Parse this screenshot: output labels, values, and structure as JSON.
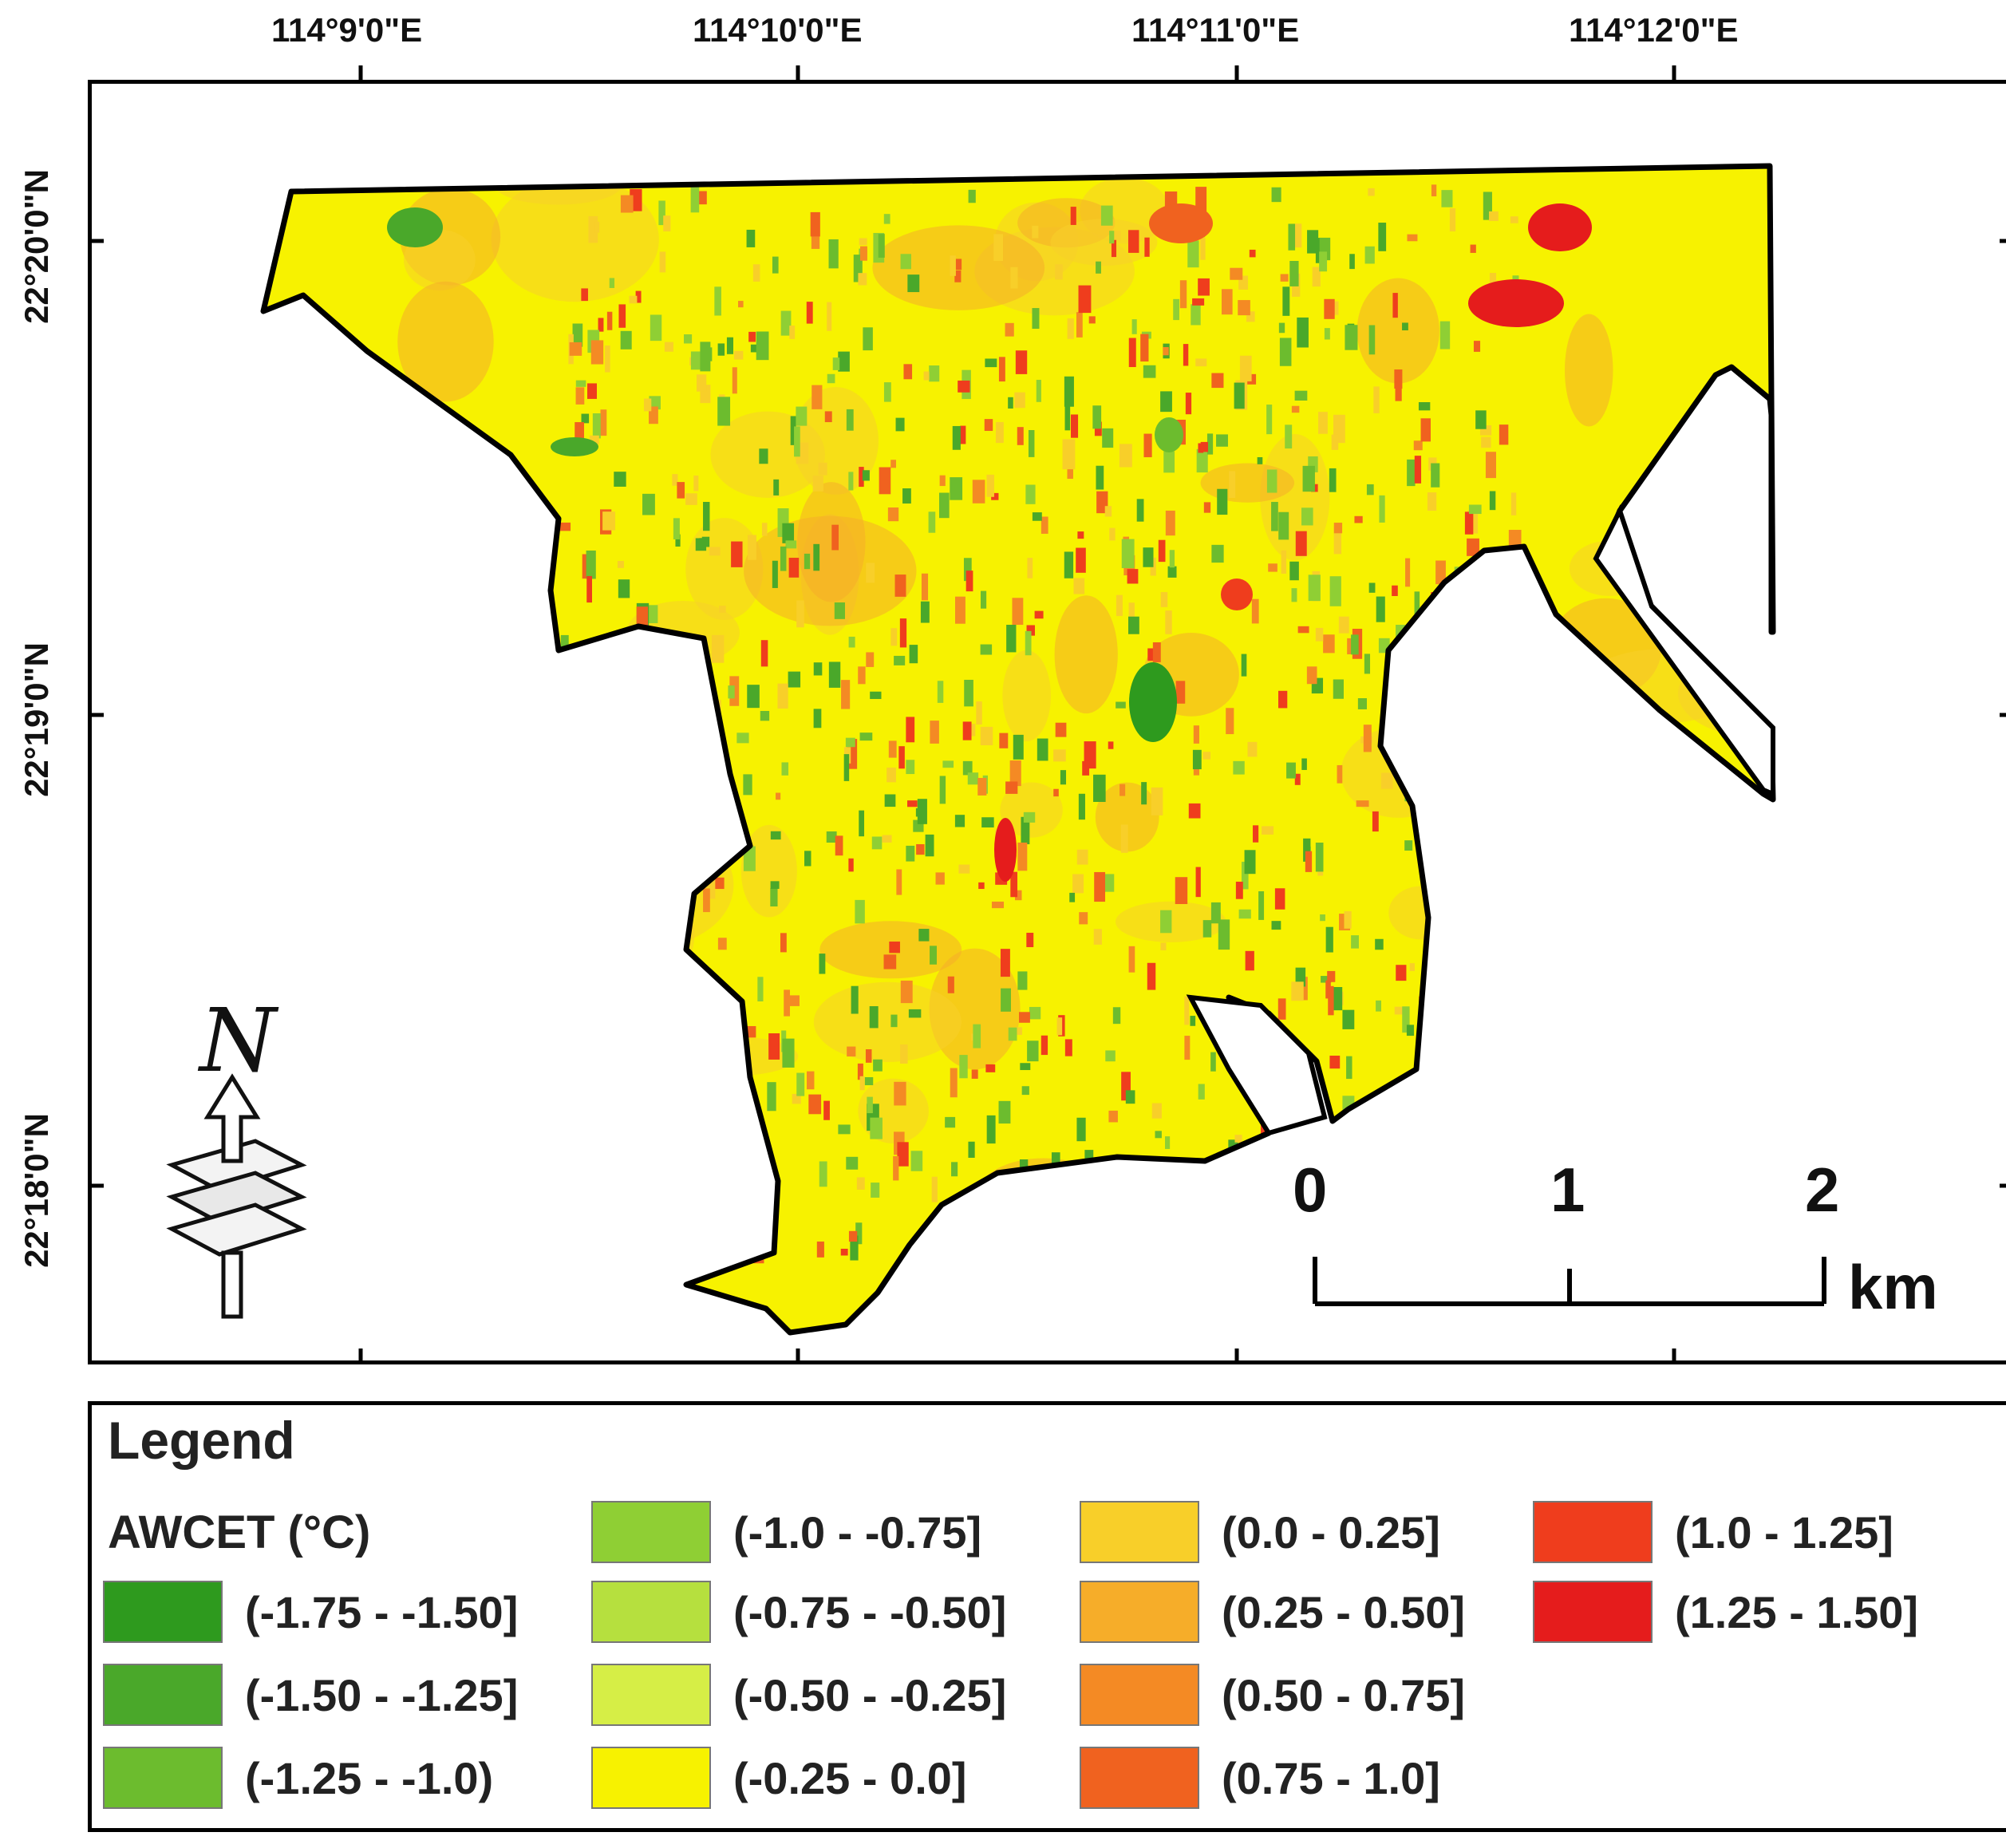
{
  "map": {
    "lon_labels": [
      "114°9'0\"E",
      "114°10'0\"E",
      "114°11'0\"E",
      "114°12'0\"E"
    ],
    "lat_labels": [
      "22°20'0\"N",
      "22°19'0\"N",
      "22°18'0\"N"
    ],
    "north_label": "N",
    "scale": {
      "ticks": [
        "0",
        "1",
        "2"
      ],
      "unit": "km"
    },
    "base_color": "#f7f200",
    "mask_color": "#ffffff"
  },
  "legend": {
    "title": "Legend",
    "subtitle": "AWCET (°C)",
    "items": [
      {
        "label": "(-1.75 - -1.50]",
        "color": "#2e9a1e"
      },
      {
        "label": "(-1.50 - -1.25]",
        "color": "#4aa82a"
      },
      {
        "label": "(-1.25 - -1.0)",
        "color": "#6cbc2e"
      },
      {
        "label": "(-1.0 - -0.75]",
        "color": "#8fcf34"
      },
      {
        "label": "(-0.75 - -0.50]",
        "color": "#b6e03e"
      },
      {
        "label": "(-0.50 - -0.25]",
        "color": "#d6ee46"
      },
      {
        "label": "(-0.25 - 0.0]",
        "color": "#f7f200"
      },
      {
        "label": "(0.0 - 0.25]",
        "color": "#f8cf29"
      },
      {
        "label": "(0.25 - 0.50]",
        "color": "#f6ad29"
      },
      {
        "label": "(0.50 - 0.75]",
        "color": "#f48a24"
      },
      {
        "label": "(0.75 - 1.0]",
        "color": "#f0621f"
      },
      {
        "label": "(1.0 - 1.25]",
        "color": "#ef3d1d"
      },
      {
        "label": "(1.25 - 1.50]",
        "color": "#e51c1c"
      }
    ]
  }
}
